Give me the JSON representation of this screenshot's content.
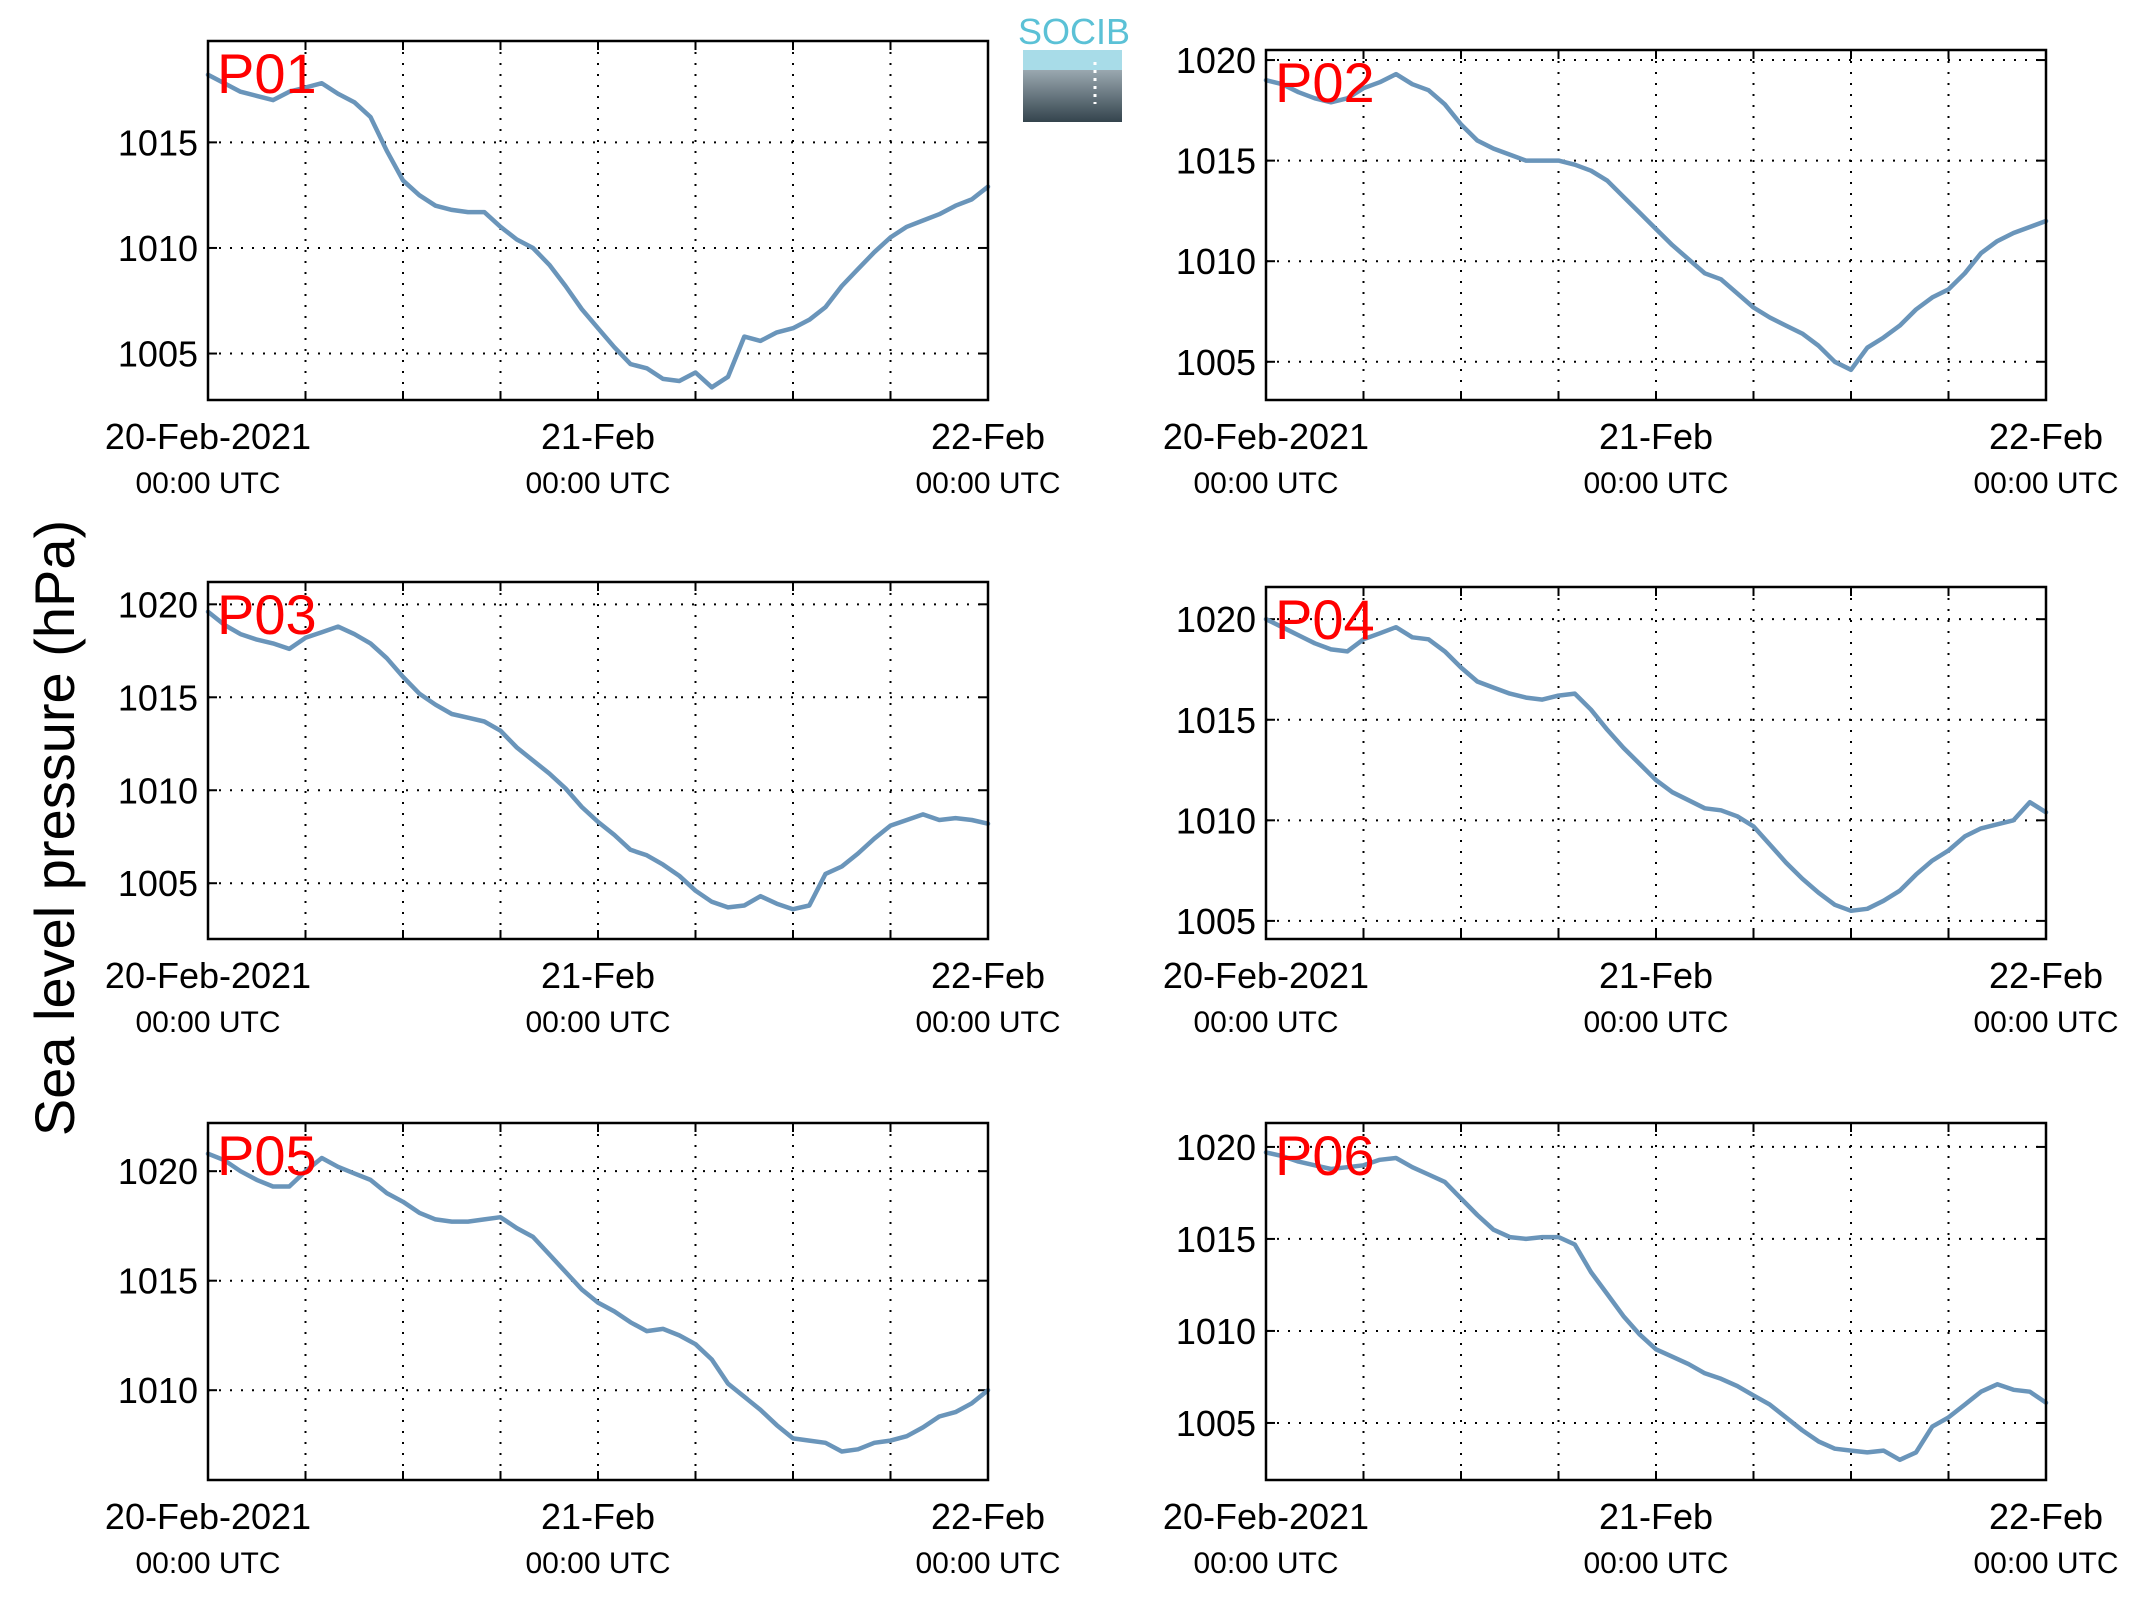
{
  "figure": {
    "ylabel": "Sea level pressure (hPa)",
    "logo_text": "SOCIB"
  },
  "colors": {
    "line": "#6a95ba",
    "label": "#ff0000",
    "axis": "#000000",
    "logo_top": "#5bc1d6",
    "logo_dark": "#34444d"
  },
  "chart_data": [
    {
      "type": "line",
      "label": "P01",
      "xlim": [
        0,
        48
      ],
      "ylim": [
        1002.8,
        1019.8
      ],
      "yticks": [
        1005,
        1010,
        1015
      ],
      "x": [
        0,
        1,
        2,
        3,
        4,
        5,
        6,
        7,
        8,
        9,
        10,
        11,
        12,
        13,
        14,
        15,
        16,
        17,
        18,
        19,
        20,
        21,
        22,
        23,
        24,
        25,
        26,
        27,
        28,
        29,
        30,
        31,
        32,
        33,
        34,
        35,
        36,
        37,
        38,
        39,
        40,
        41,
        42,
        43,
        44,
        45,
        46,
        47,
        48
      ],
      "y": [
        1018.2,
        1017.8,
        1017.4,
        1017.2,
        1017.0,
        1017.4,
        1017.6,
        1017.8,
        1017.3,
        1016.9,
        1016.2,
        1014.6,
        1013.2,
        1012.5,
        1012.0,
        1011.8,
        1011.7,
        1011.7,
        1011.0,
        1010.4,
        1010.0,
        1009.2,
        1008.2,
        1007.1,
        1006.2,
        1005.3,
        1004.5,
        1004.3,
        1003.8,
        1003.7,
        1004.1,
        1003.4,
        1003.9,
        1005.8,
        1005.6,
        1006.0,
        1006.2,
        1006.6,
        1007.2,
        1008.2,
        1009.0,
        1009.8,
        1010.5,
        1011.0,
        1011.3,
        1011.6,
        1012.0,
        1012.3,
        1012.9
      ],
      "xticks": [
        {
          "x": 0,
          "line1": "20-Feb-2021",
          "line2": "00:00 UTC"
        },
        {
          "x": 24,
          "line1": "21-Feb",
          "line2": "00:00 UTC"
        },
        {
          "x": 48,
          "line1": "22-Feb",
          "line2": "00:00 UTC"
        }
      ],
      "grid": true
    },
    {
      "type": "line",
      "label": "P02",
      "xlim": [
        0,
        48
      ],
      "ylim": [
        1003.1,
        1020.5
      ],
      "yticks": [
        1005,
        1010,
        1015,
        1020
      ],
      "x": [
        0,
        1,
        2,
        3,
        4,
        5,
        6,
        7,
        8,
        9,
        10,
        11,
        12,
        13,
        14,
        15,
        16,
        17,
        18,
        19,
        20,
        21,
        22,
        23,
        24,
        25,
        26,
        27,
        28,
        29,
        30,
        31,
        32,
        33,
        34,
        35,
        36,
        37,
        38,
        39,
        40,
        41,
        42,
        43,
        44,
        45,
        46,
        47,
        48
      ],
      "y": [
        1019.0,
        1018.8,
        1018.4,
        1018.1,
        1017.9,
        1018.1,
        1018.6,
        1018.9,
        1019.3,
        1018.8,
        1018.5,
        1017.8,
        1016.8,
        1016.0,
        1015.6,
        1015.3,
        1015.0,
        1015.0,
        1015.0,
        1014.8,
        1014.5,
        1014.0,
        1013.2,
        1012.4,
        1011.6,
        1010.8,
        1010.1,
        1009.4,
        1009.1,
        1008.4,
        1007.7,
        1007.2,
        1006.8,
        1006.4,
        1005.8,
        1005.0,
        1004.6,
        1005.7,
        1006.2,
        1006.8,
        1007.6,
        1008.2,
        1008.6,
        1009.4,
        1010.4,
        1011.0,
        1011.4,
        1011.7,
        1012.0
      ],
      "xticks": [
        {
          "x": 0,
          "line1": "20-Feb-2021",
          "line2": "00:00 UTC"
        },
        {
          "x": 24,
          "line1": "21-Feb",
          "line2": "00:00 UTC"
        },
        {
          "x": 48,
          "line1": "22-Feb",
          "line2": "00:00 UTC"
        }
      ],
      "grid": true
    },
    {
      "type": "line",
      "label": "P03",
      "xlim": [
        0,
        48
      ],
      "ylim": [
        1002.0,
        1021.2
      ],
      "yticks": [
        1005,
        1010,
        1015,
        1020
      ],
      "x": [
        0,
        1,
        2,
        3,
        4,
        5,
        6,
        7,
        8,
        9,
        10,
        11,
        12,
        13,
        14,
        15,
        16,
        17,
        18,
        19,
        20,
        21,
        22,
        23,
        24,
        25,
        26,
        27,
        28,
        29,
        30,
        31,
        32,
        33,
        34,
        35,
        36,
        37,
        38,
        39,
        40,
        41,
        42,
        43,
        44,
        45,
        46,
        47,
        48
      ],
      "y": [
        1019.6,
        1018.9,
        1018.4,
        1018.1,
        1017.9,
        1017.6,
        1018.2,
        1018.5,
        1018.8,
        1018.4,
        1017.9,
        1017.1,
        1016.1,
        1015.2,
        1014.6,
        1014.1,
        1013.9,
        1013.7,
        1013.2,
        1012.3,
        1011.6,
        1010.9,
        1010.1,
        1009.1,
        1008.3,
        1007.6,
        1006.8,
        1006.5,
        1006.0,
        1005.4,
        1004.6,
        1004.0,
        1003.7,
        1003.8,
        1004.3,
        1003.9,
        1003.6,
        1003.8,
        1005.5,
        1005.9,
        1006.6,
        1007.4,
        1008.1,
        1008.4,
        1008.7,
        1008.4,
        1008.5,
        1008.4,
        1008.2
      ],
      "xticks": [
        {
          "x": 0,
          "line1": "20-Feb-2021",
          "line2": "00:00 UTC"
        },
        {
          "x": 24,
          "line1": "21-Feb",
          "line2": "00:00 UTC"
        },
        {
          "x": 48,
          "line1": "22-Feb",
          "line2": "00:00 UTC"
        }
      ],
      "grid": true
    },
    {
      "type": "line",
      "label": "P04",
      "xlim": [
        0,
        48
      ],
      "ylim": [
        1004.1,
        1021.6
      ],
      "yticks": [
        1005,
        1010,
        1015,
        1020
      ],
      "x": [
        0,
        1,
        2,
        3,
        4,
        5,
        6,
        7,
        8,
        9,
        10,
        11,
        12,
        13,
        14,
        15,
        16,
        17,
        18,
        19,
        20,
        21,
        22,
        23,
        24,
        25,
        26,
        27,
        28,
        29,
        30,
        31,
        32,
        33,
        34,
        35,
        36,
        37,
        38,
        39,
        40,
        41,
        42,
        43,
        44,
        45,
        46,
        47,
        48
      ],
      "y": [
        1020.0,
        1019.6,
        1019.2,
        1018.8,
        1018.5,
        1018.4,
        1019.0,
        1019.3,
        1019.6,
        1019.1,
        1019.0,
        1018.4,
        1017.6,
        1016.9,
        1016.6,
        1016.3,
        1016.1,
        1016.0,
        1016.2,
        1016.3,
        1015.5,
        1014.5,
        1013.6,
        1012.8,
        1012.0,
        1011.4,
        1011.0,
        1010.6,
        1010.5,
        1010.2,
        1009.7,
        1008.8,
        1007.9,
        1007.1,
        1006.4,
        1005.8,
        1005.5,
        1005.6,
        1006.0,
        1006.5,
        1007.3,
        1008.0,
        1008.5,
        1009.2,
        1009.6,
        1009.8,
        1010.0,
        1010.9,
        1010.4
      ],
      "xticks": [
        {
          "x": 0,
          "line1": "20-Feb-2021",
          "line2": "00:00 UTC"
        },
        {
          "x": 24,
          "line1": "21-Feb",
          "line2": "00:00 UTC"
        },
        {
          "x": 48,
          "line1": "22-Feb",
          "line2": "00:00 UTC"
        }
      ],
      "grid": true
    },
    {
      "type": "line",
      "label": "P05",
      "xlim": [
        0,
        48
      ],
      "ylim": [
        1005.9,
        1022.2
      ],
      "yticks": [
        1010,
        1015,
        1020
      ],
      "x": [
        0,
        1,
        2,
        3,
        4,
        5,
        6,
        7,
        8,
        9,
        10,
        11,
        12,
        13,
        14,
        15,
        16,
        17,
        18,
        19,
        20,
        21,
        22,
        23,
        24,
        25,
        26,
        27,
        28,
        29,
        30,
        31,
        32,
        33,
        34,
        35,
        36,
        37,
        38,
        39,
        40,
        41,
        42,
        43,
        44,
        45,
        46,
        47,
        48
      ],
      "y": [
        1020.8,
        1020.5,
        1020.0,
        1019.6,
        1019.3,
        1019.3,
        1020.0,
        1020.6,
        1020.2,
        1019.9,
        1019.6,
        1019.0,
        1018.6,
        1018.1,
        1017.8,
        1017.7,
        1017.7,
        1017.8,
        1017.9,
        1017.4,
        1017.0,
        1016.2,
        1015.4,
        1014.6,
        1014.0,
        1013.6,
        1013.1,
        1012.7,
        1012.8,
        1012.5,
        1012.1,
        1011.4,
        1010.3,
        1009.7,
        1009.1,
        1008.4,
        1007.8,
        1007.7,
        1007.6,
        1007.2,
        1007.3,
        1007.6,
        1007.7,
        1007.9,
        1008.3,
        1008.8,
        1009.0,
        1009.4,
        1010.0
      ],
      "xticks": [
        {
          "x": 0,
          "line1": "20-Feb-2021",
          "line2": "00:00 UTC"
        },
        {
          "x": 24,
          "line1": "21-Feb",
          "line2": "00:00 UTC"
        },
        {
          "x": 48,
          "line1": "22-Feb",
          "line2": "00:00 UTC"
        }
      ],
      "grid": true
    },
    {
      "type": "line",
      "label": "P06",
      "xlim": [
        0,
        48
      ],
      "ylim": [
        1001.9,
        1021.3
      ],
      "yticks": [
        1005,
        1010,
        1015,
        1020
      ],
      "x": [
        0,
        1,
        2,
        3,
        4,
        5,
        6,
        7,
        8,
        9,
        10,
        11,
        12,
        13,
        14,
        15,
        16,
        17,
        18,
        19,
        20,
        21,
        22,
        23,
        24,
        25,
        26,
        27,
        28,
        29,
        30,
        31,
        32,
        33,
        34,
        35,
        36,
        37,
        38,
        39,
        40,
        41,
        42,
        43,
        44,
        45,
        46,
        47,
        48
      ],
      "y": [
        1019.7,
        1019.5,
        1019.2,
        1019.0,
        1018.8,
        1018.9,
        1019.0,
        1019.3,
        1019.4,
        1018.9,
        1018.5,
        1018.1,
        1017.2,
        1016.3,
        1015.5,
        1015.1,
        1015.0,
        1015.1,
        1015.1,
        1014.7,
        1013.2,
        1012.0,
        1010.8,
        1009.8,
        1009.0,
        1008.6,
        1008.2,
        1007.7,
        1007.4,
        1007.0,
        1006.5,
        1006.0,
        1005.3,
        1004.6,
        1004.0,
        1003.6,
        1003.5,
        1003.4,
        1003.5,
        1003.0,
        1003.4,
        1004.8,
        1005.3,
        1006.0,
        1006.7,
        1007.1,
        1006.8,
        1006.7,
        1006.1
      ],
      "xticks": [
        {
          "x": 0,
          "line1": "20-Feb-2021",
          "line2": "00:00 UTC"
        },
        {
          "x": 24,
          "line1": "21-Feb",
          "line2": "00:00 UTC"
        },
        {
          "x": 48,
          "line1": "22-Feb",
          "line2": "00:00 UTC"
        }
      ],
      "grid": true
    }
  ]
}
